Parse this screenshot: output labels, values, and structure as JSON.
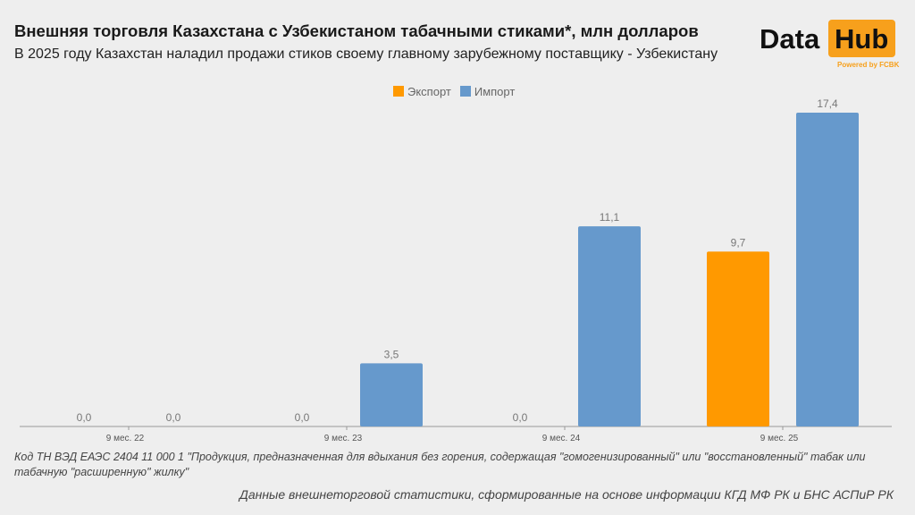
{
  "header": {
    "title": "Внешняя торговля Казахстана с Узбекистаном табачными стиками*, млн долларов",
    "subtitle": "В 2025 году Казахстан наладил продажи стиков своему главному зарубежному поставщику - Узбекистану"
  },
  "logo": {
    "word1": "Data",
    "word2": "Hub",
    "tagline": "Powered by FCBK"
  },
  "footer": {
    "note": "Код ТН ВЭД ЕАЭС 2404 11 000 1 \"Продукция, предназначенная для вдыхания без горения, содержащая \"гомогенизированный\" или \"восстановленный\" табак или табачную \"расширенную\" жилку\"",
    "source": "Данные внешнеторговой статистики, сформированные на основе информации КГД МФ РК и БНС АСПиР РК"
  },
  "chart_data": {
    "type": "bar",
    "categories": [
      "9 мес. 22",
      "9 мес. 23",
      "9 мес. 24",
      "9 мес. 25"
    ],
    "series": [
      {
        "name": "Экспорт",
        "color": "#ff9900",
        "values": [
          0.0,
          0.0,
          0.0,
          9.7
        ],
        "labels": [
          "0,0",
          "0,0",
          "0,0",
          "9,7"
        ]
      },
      {
        "name": "Импорт",
        "color": "#6699cc",
        "values": [
          0.0,
          3.5,
          11.1,
          17.4
        ],
        "labels": [
          "0,0",
          "3,5",
          "11,1",
          "17,4"
        ]
      }
    ],
    "legend": "top",
    "grid": false,
    "ylim": [
      0,
      17.4
    ]
  }
}
